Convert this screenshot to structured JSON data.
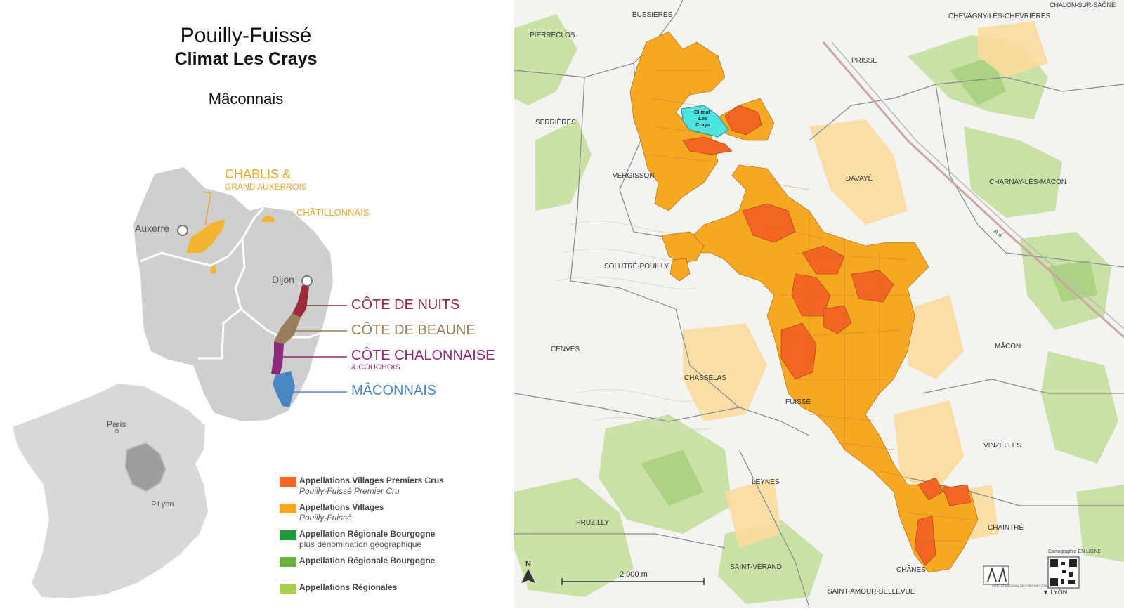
{
  "header": {
    "appellation": "Pouilly-Fuissé",
    "climat": "Climat Les Crays",
    "region": "Mâconnais"
  },
  "region_map": {
    "chablis": "CHABLIS &",
    "chablis_sub": "GRAND AUXERROIS",
    "chatillonnais": "CHÂTILLONNAIS",
    "auxerre": "Auxerre",
    "dijon": "Dijon",
    "cote_nuits": "CÔTE DE NUITS",
    "cote_beaune": "CÔTE DE BEAUNE",
    "cote_chalonnaise": "CÔTE CHALONNAISE",
    "cote_chalonnaise_sub": "& COUCHOIS",
    "maconnais": "MÂCONNAIS",
    "paris": "Paris",
    "lyon": "Lyon"
  },
  "legend": [
    {
      "label": "Appellations Villages Premiers Crus",
      "sub": "Pouilly-Fuissé Premier Cru",
      "color": "#f26522"
    },
    {
      "label": "Appellations Villages",
      "sub": "Pouilly-Fuissé",
      "color": "#f7a823"
    },
    {
      "label": "Appellation Régionale Bourgogne",
      "sub": "plus dénomination géographique",
      "color": "#1e9a3a"
    },
    {
      "label": "Appellation Régionale Bourgogne",
      "sub": "",
      "color": "#6ab43e"
    },
    {
      "label": "Appellations Régionales",
      "sub": "",
      "color": "#a7cf4f"
    }
  ],
  "map": {
    "highlight": [
      "Climat",
      "Les",
      "Crays"
    ],
    "towns": {
      "bussieres": "BUSSIÈRES",
      "chalon": "CHALON-SUR-SAÔNE",
      "chevagny": "CHEVAGNY-LES-CHEVRIÈRES",
      "pierreclos": "PIERRECLOS",
      "prisse": "PRISSÉ",
      "serrieres": "SERRIÈRES",
      "vergisson": "VERGISSON",
      "davaye": "DAVAYÉ",
      "charnay": "CHARNAY-LÈS-MÂCON",
      "solutre": "SOLUTRÉ-POUILLY",
      "cenves": "CENVES",
      "macon": "MÂCON",
      "chasselas": "CHASSELAS",
      "fuisse": "FUISSÉ",
      "vinzelles": "VINZELLES",
      "leynes": "LEYNES",
      "pruzilly": "PRUZILLY",
      "chaintre": "CHAINTRÉ",
      "saint_verand": "SAINT-VÉRAND",
      "chanes": "CHÂNES",
      "saint_amour": "SAINT-AMOUR-BELLEVUE",
      "lyon_arrow": "▼ LYON"
    },
    "scale": "2 000 m",
    "north": "N",
    "qr_caption": "Cartographie EN LIGNE",
    "inao": "INSTITUT NATIONAL DE L'ORIGINE ET DE LA QUALITÉ",
    "road": "A 6"
  },
  "colors": {
    "premier_cru": "#f26522",
    "village": "#f7a823",
    "climat": "#4de3e0",
    "region_grey": "#cfcfcf",
    "nuits": "#9b2a3a",
    "beaune": "#9a7e5c",
    "chalonnaise": "#8e2a7c",
    "maconnais": "#4a86c4",
    "chablis": "#f2a52b"
  }
}
